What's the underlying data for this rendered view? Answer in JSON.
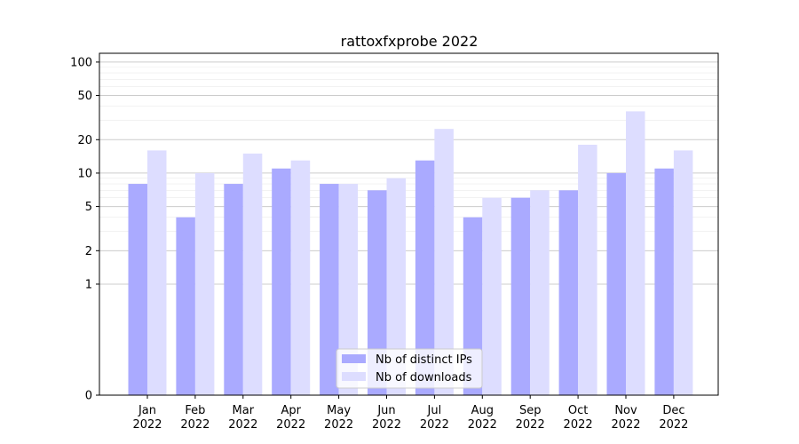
{
  "chart_data": {
    "type": "bar",
    "title": "rattoxfxprobe 2022",
    "xlabel": "",
    "ylabel": "",
    "y_scale": "symlog",
    "ylim": [
      0,
      120
    ],
    "y_ticks": [
      0,
      1,
      2,
      5,
      10,
      20,
      50,
      100
    ],
    "grid": true,
    "legend_position": "lower-center",
    "categories": [
      [
        "Jan",
        "2022"
      ],
      [
        "Feb",
        "2022"
      ],
      [
        "Mar",
        "2022"
      ],
      [
        "Apr",
        "2022"
      ],
      [
        "May",
        "2022"
      ],
      [
        "Jun",
        "2022"
      ],
      [
        "Jul",
        "2022"
      ],
      [
        "Aug",
        "2022"
      ],
      [
        "Sep",
        "2022"
      ],
      [
        "Oct",
        "2022"
      ],
      [
        "Nov",
        "2022"
      ],
      [
        "Dec",
        "2022"
      ]
    ],
    "series": [
      {
        "name": "Nb of distinct IPs",
        "color": "#aaaaff",
        "values": [
          8,
          4,
          8,
          11,
          8,
          7,
          13,
          4,
          6,
          7,
          10,
          11
        ]
      },
      {
        "name": "Nb of downloads",
        "color": "#ddddff",
        "values": [
          16,
          10,
          15,
          13,
          8,
          9,
          25,
          6,
          7,
          18,
          36,
          16
        ]
      }
    ]
  }
}
